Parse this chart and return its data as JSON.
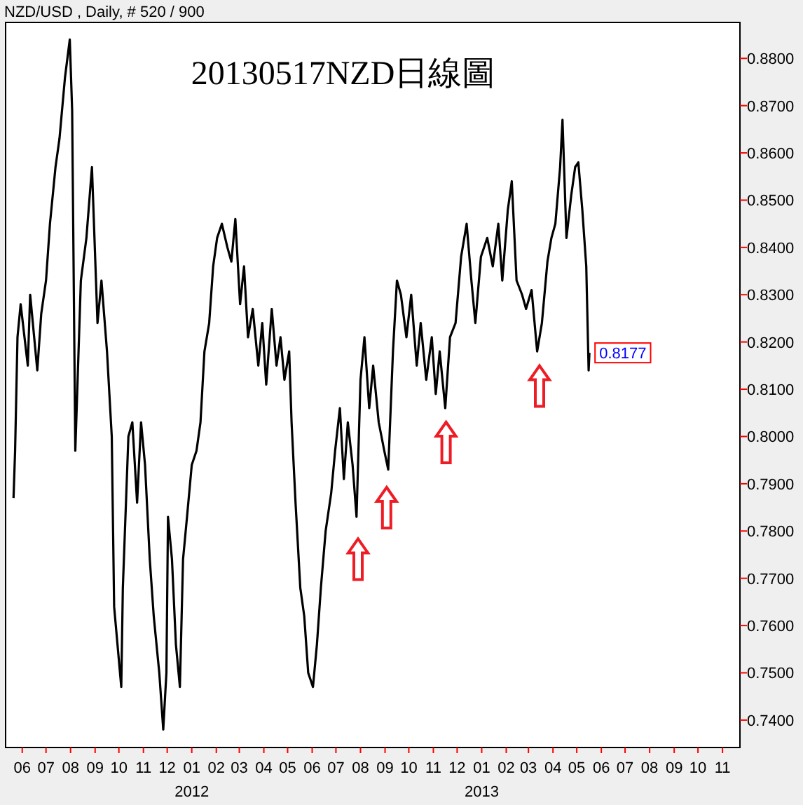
{
  "chart_data": {
    "type": "line",
    "title": "20130517NZD日線圖",
    "subtitle": "NZD/USD , Daily, # 520 / 900",
    "x": [
      "2011-05-21",
      "2011-05-23",
      "2011-05-26",
      "2011-05-30",
      "2011-06-08",
      "2011-06-11",
      "2011-06-20",
      "2011-06-25",
      "2011-07-01",
      "2011-07-06",
      "2011-07-13",
      "2011-07-18",
      "2011-07-25",
      "2011-07-31",
      "2011-08-03",
      "2011-08-07",
      "2011-08-14",
      "2011-08-21",
      "2011-08-28",
      "2011-09-04",
      "2011-09-09",
      "2011-09-16",
      "2011-09-22",
      "2011-09-25",
      "2011-10-04",
      "2011-10-06",
      "2011-10-13",
      "2011-10-18",
      "2011-10-24",
      "2011-10-29",
      "2011-11-03",
      "2011-11-09",
      "2011-11-14",
      "2011-11-21",
      "2011-11-26",
      "2011-11-30",
      "2011-12-02",
      "2011-12-07",
      "2011-12-12",
      "2011-12-17",
      "2011-12-21",
      "2011-12-26",
      "2012-01-01",
      "2012-01-07",
      "2012-01-12",
      "2012-01-17",
      "2012-01-23",
      "2012-01-28",
      "2012-02-02",
      "2012-02-08",
      "2012-02-15",
      "2012-02-20",
      "2012-02-25",
      "2012-03-02",
      "2012-03-07",
      "2012-03-12",
      "2012-03-18",
      "2012-03-25",
      "2012-03-30",
      "2012-04-04",
      "2012-04-11",
      "2012-04-17",
      "2012-04-22",
      "2012-04-27",
      "2012-05-03",
      "2012-05-06",
      "2012-05-11",
      "2012-05-17",
      "2012-05-22",
      "2012-05-27",
      "2012-06-02",
      "2012-06-07",
      "2012-06-12",
      "2012-06-18",
      "2012-06-25",
      "2012-06-30",
      "2012-07-06",
      "2012-07-11",
      "2012-07-16",
      "2012-07-22",
      "2012-07-27",
      "2012-08-01",
      "2012-08-06",
      "2012-08-12",
      "2012-08-17",
      "2012-08-24",
      "2012-08-31",
      "2012-09-05",
      "2012-09-11",
      "2012-09-16",
      "2012-09-21",
      "2012-09-28",
      "2012-10-04",
      "2012-10-11",
      "2012-10-16",
      "2012-10-23",
      "2012-10-30",
      "2012-11-04",
      "2012-11-09",
      "2012-11-16",
      "2012-11-22",
      "2012-11-29",
      "2012-12-06",
      "2012-12-13",
      "2012-12-19",
      "2012-12-24",
      "2012-12-31",
      "2013-01-08",
      "2013-01-15",
      "2013-01-22",
      "2013-01-27",
      "2013-02-03",
      "2013-02-08",
      "2013-02-14",
      "2013-02-21",
      "2013-02-26",
      "2013-03-05",
      "2013-03-12",
      "2013-03-18",
      "2013-03-25",
      "2013-03-30",
      "2013-04-04",
      "2013-04-10",
      "2013-04-13",
      "2013-04-18",
      "2013-04-24",
      "2013-04-29",
      "2013-05-03",
      "2013-05-08",
      "2013-05-13",
      "2013-05-16",
      "2013-05-17"
    ],
    "series": [
      {
        "color": "#000000",
        "values": [
          0.787,
          0.797,
          0.821,
          0.828,
          0.815,
          0.83,
          0.814,
          0.826,
          0.833,
          0.845,
          0.857,
          0.863,
          0.876,
          0.884,
          0.869,
          0.797,
          0.833,
          0.842,
          0.857,
          0.824,
          0.833,
          0.818,
          0.8,
          0.764,
          0.747,
          0.768,
          0.8,
          0.803,
          0.786,
          0.803,
          0.794,
          0.774,
          0.762,
          0.75,
          0.738,
          0.75,
          0.783,
          0.774,
          0.756,
          0.747,
          0.774,
          0.783,
          0.794,
          0.797,
          0.803,
          0.818,
          0.824,
          0.836,
          0.842,
          0.845,
          0.84,
          0.837,
          0.846,
          0.828,
          0.836,
          0.821,
          0.827,
          0.815,
          0.824,
          0.811,
          0.827,
          0.815,
          0.821,
          0.812,
          0.818,
          0.803,
          0.786,
          0.768,
          0.762,
          0.75,
          0.747,
          0.756,
          0.768,
          0.78,
          0.788,
          0.797,
          0.806,
          0.791,
          0.803,
          0.794,
          0.783,
          0.812,
          0.821,
          0.806,
          0.815,
          0.803,
          0.797,
          0.793,
          0.818,
          0.833,
          0.83,
          0.821,
          0.83,
          0.815,
          0.824,
          0.812,
          0.821,
          0.809,
          0.818,
          0.806,
          0.821,
          0.824,
          0.838,
          0.845,
          0.833,
          0.824,
          0.838,
          0.842,
          0.836,
          0.845,
          0.833,
          0.848,
          0.854,
          0.833,
          0.83,
          0.827,
          0.831,
          0.818,
          0.824,
          0.837,
          0.842,
          0.845,
          0.857,
          0.867,
          0.842,
          0.851,
          0.857,
          0.858,
          0.848,
          0.836,
          0.814,
          0.8177
        ]
      },
      {
        "type": "scatter",
        "marker": "triangle",
        "color": "#ee1c24",
        "x": [
          "2012-07-29",
          "2012-09-03",
          "2012-11-17",
          "2013-03-15"
        ],
        "values": [
          0.7739,
          0.7848,
          0.7986,
          0.8105
        ]
      }
    ],
    "xlim": [
      "2011-05-11",
      "2013-11-23"
    ],
    "xticks": [
      {
        "value": "2011-06-01",
        "label": "06"
      },
      {
        "value": "2011-07-01",
        "label": "07"
      },
      {
        "value": "2011-08-01",
        "label": "08"
      },
      {
        "value": "2011-09-01",
        "label": "09"
      },
      {
        "value": "2011-10-01",
        "label": "10"
      },
      {
        "value": "2011-11-01",
        "label": "11"
      },
      {
        "value": "2011-12-01",
        "label": "12"
      },
      {
        "value": "2012-01-01",
        "label": "01\n2012"
      },
      {
        "value": "2012-02-01",
        "label": "02"
      },
      {
        "value": "2012-03-01",
        "label": "03"
      },
      {
        "value": "2012-04-01",
        "label": "04"
      },
      {
        "value": "2012-05-01",
        "label": "05"
      },
      {
        "value": "2012-06-01",
        "label": "06"
      },
      {
        "value": "2012-07-01",
        "label": "07"
      },
      {
        "value": "2012-08-01",
        "label": "08"
      },
      {
        "value": "2012-09-01",
        "label": "09"
      },
      {
        "value": "2012-10-01",
        "label": "10"
      },
      {
        "value": "2012-11-01",
        "label": "11"
      },
      {
        "value": "2012-12-01",
        "label": "12"
      },
      {
        "value": "2013-01-01",
        "label": "01\n2013"
      },
      {
        "value": "2013-02-01",
        "label": "02"
      },
      {
        "value": "2013-03-01",
        "label": "03"
      },
      {
        "value": "2013-04-01",
        "label": "04"
      },
      {
        "value": "2013-05-01",
        "label": "05"
      },
      {
        "value": "2013-06-01",
        "label": "06"
      },
      {
        "value": "2013-07-01",
        "label": "07"
      },
      {
        "value": "2013-08-01",
        "label": "08"
      },
      {
        "value": "2013-09-01",
        "label": "09"
      },
      {
        "value": "2013-10-01",
        "label": "10"
      },
      {
        "value": "2013-11-01",
        "label": "11"
      }
    ],
    "ylim": [
      0.7342,
      0.8876
    ],
    "yticks": [
      {
        "value": 0.74,
        "label": "0.7400"
      },
      {
        "value": 0.75,
        "label": "0.7500"
      },
      {
        "value": 0.76,
        "label": "0.7600"
      },
      {
        "value": 0.77,
        "label": "0.7700"
      },
      {
        "value": 0.78,
        "label": "0.7800"
      },
      {
        "value": 0.79,
        "label": "0.7900"
      },
      {
        "value": 0.8,
        "label": "0.8000"
      },
      {
        "value": 0.81,
        "label": "0.8100"
      },
      {
        "value": 0.82,
        "label": "0.8200"
      },
      {
        "value": 0.83,
        "label": "0.8300"
      },
      {
        "value": 0.84,
        "label": "0.8400"
      },
      {
        "value": 0.85,
        "label": "0.8500"
      },
      {
        "value": 0.86,
        "label": "0.8600"
      },
      {
        "value": 0.87,
        "label": "0.8700"
      },
      {
        "value": 0.88,
        "label": "0.8800"
      }
    ],
    "annotations": [
      {
        "text": "0.8177",
        "x": "2013-05-17",
        "y": 0.8177
      }
    ]
  }
}
